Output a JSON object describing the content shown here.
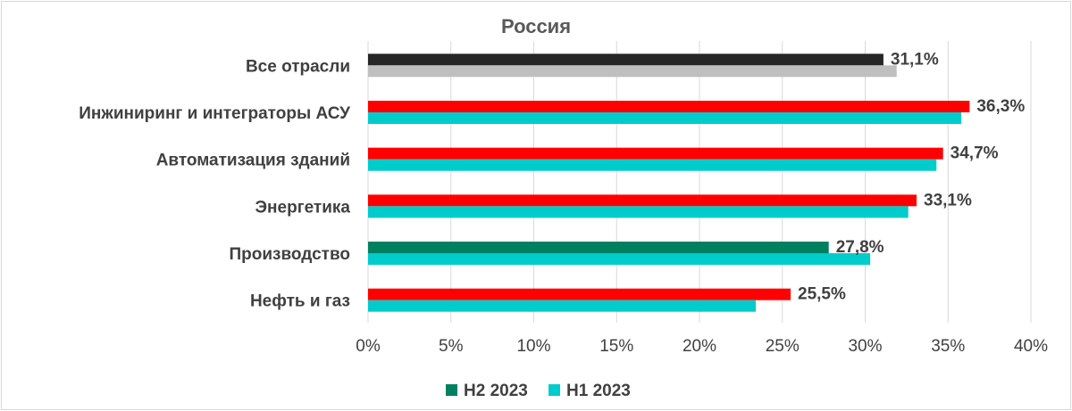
{
  "chart_data": {
    "type": "bar",
    "orientation": "horizontal",
    "title": "Россия",
    "categories": [
      "Все отрасли",
      "Инжиниринг и интеграторы АСУ",
      "Автоматизация зданий",
      "Энергетика",
      "Производство",
      "Нефть и газ"
    ],
    "series": [
      {
        "name": "H2 2023",
        "values": [
          31.1,
          36.3,
          34.7,
          33.1,
          27.8,
          25.5
        ],
        "data_labels": [
          "31,1%",
          "36,3%",
          "34,7%",
          "33,1%",
          "27,8%",
          "25,5%"
        ],
        "colors": [
          "#262626",
          "#ff0000",
          "#ff0000",
          "#ff0000",
          "#008060",
          "#ff0000"
        ],
        "legend_color": "#008060"
      },
      {
        "name": "H1 2023",
        "values": [
          31.9,
          35.8,
          34.3,
          32.6,
          30.3,
          23.4
        ],
        "colors": [
          "#bfbfbf",
          "#00cccc",
          "#00cccc",
          "#00cccc",
          "#00cccc",
          "#00cccc"
        ],
        "legend_color": "#00cccc"
      }
    ],
    "xlim": [
      0,
      40
    ],
    "xticks": [
      0,
      5,
      10,
      15,
      20,
      25,
      30,
      35,
      40
    ],
    "xtick_labels": [
      "0%",
      "5%",
      "10%",
      "15%",
      "20%",
      "25%",
      "30%",
      "35%",
      "40%"
    ],
    "grid": true,
    "legend_position": "bottom"
  }
}
